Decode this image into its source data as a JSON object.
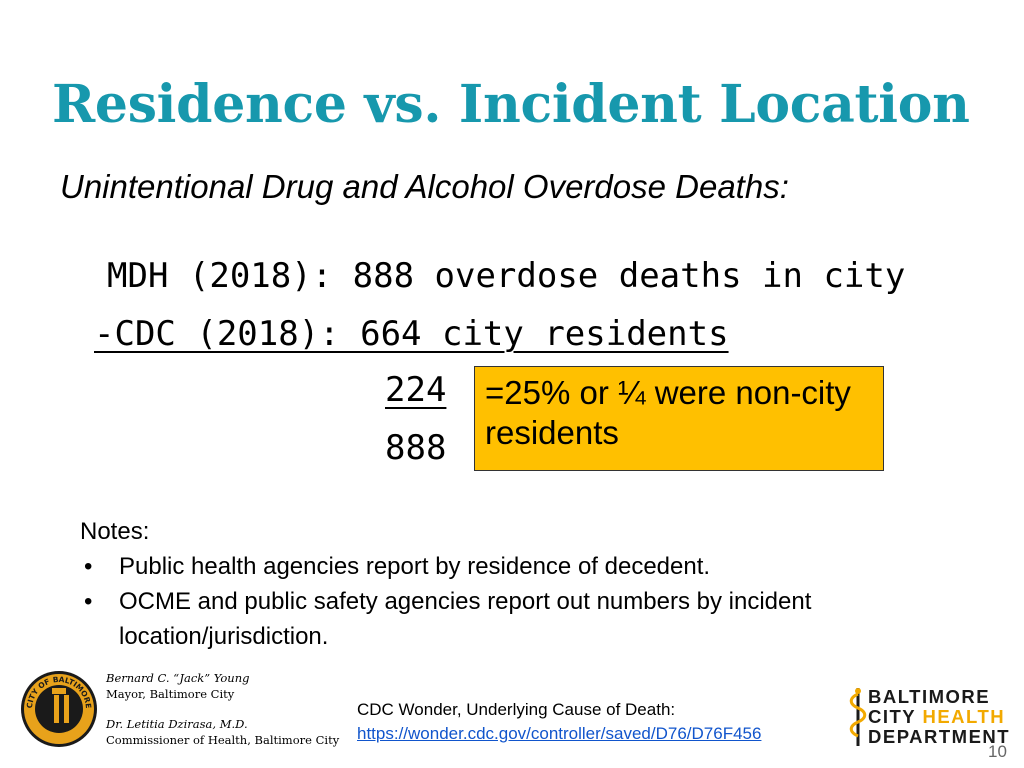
{
  "slide": {
    "title": "Residence vs. Incident Location",
    "subtitle": "Unintentional Drug and Alcohol Overdose Deaths:",
    "line1": "MDH (2018): 888 overdose deaths in city",
    "line2": "-CDC (2018): 664 city residents",
    "difference": "224",
    "total": "888",
    "callout": "=25% or ¼ were non-city residents",
    "notes": {
      "heading": "Notes:",
      "items": [
        "Public health agencies report by residence of decedent.",
        "OCME and public safety agencies report out numbers by incident location/jurisdiction."
      ]
    },
    "officials": {
      "mayor_name": "Bernard C. “Jack” Young",
      "mayor_title": "Mayor, Baltimore City",
      "commissioner_name": "Dr. Letitia Dzirasa, M.D.",
      "commissioner_title": "Commissioner of Health, Baltimore City"
    },
    "seal_text": "CITY OF BALTIMORE",
    "source": {
      "label": "CDC Wonder, Underlying Cause of Death:",
      "url": "https://wonder.cdc.gov/controller/saved/D76/D76F456"
    },
    "logo": {
      "line1": "BALTIMORE",
      "line2_city": "CITY",
      "line2_health": "HEALTH",
      "line3": "DEPARTMENT"
    },
    "page_number": "10"
  }
}
